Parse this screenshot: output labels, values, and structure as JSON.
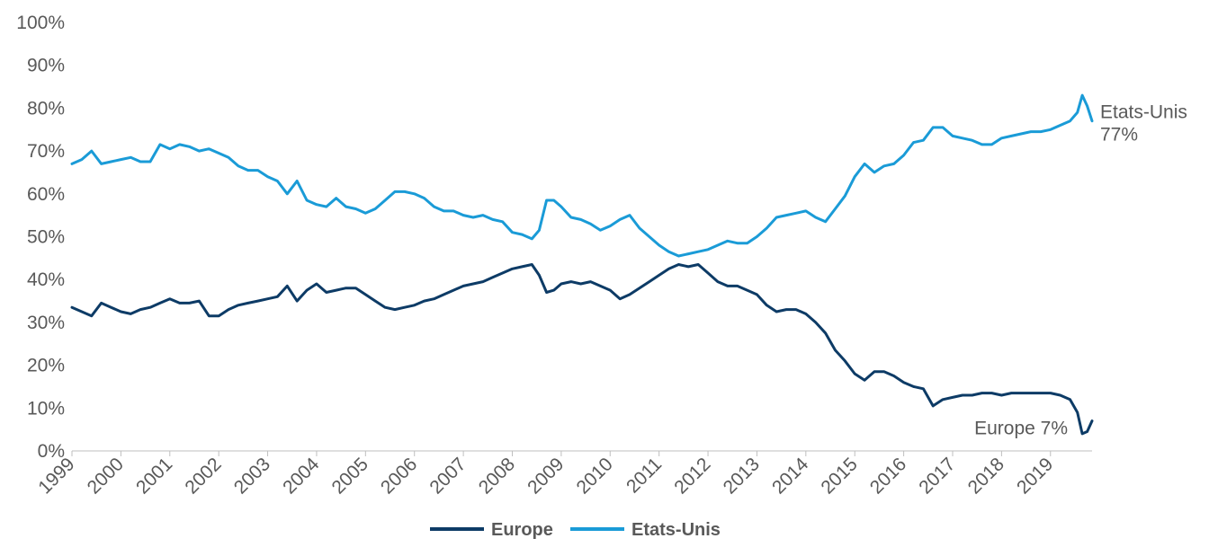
{
  "chart_data": {
    "type": "line",
    "title": "",
    "xlabel": "",
    "ylabel": "",
    "ylim": [
      0,
      100
    ],
    "y_ticks": [
      "0%",
      "10%",
      "20%",
      "30%",
      "40%",
      "50%",
      "60%",
      "70%",
      "80%",
      "90%",
      "100%"
    ],
    "x_ticks": [
      "1999",
      "2000",
      "2001",
      "2002",
      "2003",
      "2004",
      "2005",
      "2006",
      "2007",
      "2008",
      "2009",
      "2010",
      "2011",
      "2012",
      "2013",
      "2014",
      "2015",
      "2016",
      "2017",
      "2018",
      "2019"
    ],
    "xlim": [
      1999.0,
      2019.85
    ],
    "grid": false,
    "legend_position": "bottom",
    "series": [
      {
        "name": "Europe",
        "color": "#0d3b66",
        "x": [
          1999.0,
          1999.2,
          1999.4,
          1999.6,
          1999.8,
          2000.0,
          2000.2,
          2000.4,
          2000.6,
          2000.8,
          2001.0,
          2001.2,
          2001.4,
          2001.6,
          2001.8,
          2002.0,
          2002.2,
          2002.4,
          2002.6,
          2002.8,
          2003.0,
          2003.2,
          2003.4,
          2003.6,
          2003.8,
          2004.0,
          2004.2,
          2004.4,
          2004.6,
          2004.8,
          2005.0,
          2005.2,
          2005.4,
          2005.6,
          2005.8,
          2006.0,
          2006.2,
          2006.4,
          2006.6,
          2006.8,
          2007.0,
          2007.2,
          2007.4,
          2007.6,
          2007.8,
          2008.0,
          2008.2,
          2008.4,
          2008.55,
          2008.7,
          2008.85,
          2009.0,
          2009.2,
          2009.4,
          2009.6,
          2009.8,
          2010.0,
          2010.2,
          2010.4,
          2010.6,
          2010.8,
          2011.0,
          2011.2,
          2011.4,
          2011.6,
          2011.8,
          2012.0,
          2012.2,
          2012.4,
          2012.6,
          2012.8,
          2013.0,
          2013.2,
          2013.4,
          2013.6,
          2013.8,
          2014.0,
          2014.2,
          2014.4,
          2014.6,
          2014.8,
          2015.0,
          2015.2,
          2015.4,
          2015.6,
          2015.8,
          2016.0,
          2016.2,
          2016.4,
          2016.6,
          2016.8,
          2017.0,
          2017.2,
          2017.4,
          2017.6,
          2017.8,
          2018.0,
          2018.2,
          2018.4,
          2018.6,
          2018.8,
          2019.0,
          2019.2,
          2019.4,
          2019.55,
          2019.65,
          2019.75,
          2019.85
        ],
        "values": [
          33.5,
          32.5,
          31.5,
          34.5,
          33.5,
          32.5,
          32.0,
          33.0,
          33.5,
          34.5,
          35.5,
          34.5,
          34.5,
          35.0,
          31.5,
          31.5,
          33.0,
          34.0,
          34.5,
          35.0,
          35.5,
          36.0,
          38.5,
          35.0,
          37.5,
          39.0,
          37.0,
          37.5,
          38.0,
          38.0,
          36.5,
          35.0,
          33.5,
          33.0,
          33.5,
          34.0,
          35.0,
          35.5,
          36.5,
          37.5,
          38.5,
          39.0,
          39.5,
          40.5,
          41.5,
          42.5,
          43.0,
          43.5,
          41.0,
          37.0,
          37.5,
          39.0,
          39.5,
          39.0,
          39.5,
          38.5,
          37.5,
          35.5,
          36.5,
          38.0,
          39.5,
          41.0,
          42.5,
          43.5,
          43.0,
          43.5,
          41.5,
          39.5,
          38.5,
          38.5,
          37.5,
          36.5,
          34.0,
          32.5,
          33.0,
          33.0,
          32.0,
          30.0,
          27.5,
          23.5,
          21.0,
          18.0,
          16.5,
          18.5,
          18.5,
          17.5,
          16.0,
          15.0,
          14.5,
          10.5,
          12.0,
          12.5,
          13.0,
          13.0,
          13.5,
          13.5,
          13.0,
          13.5,
          13.5,
          13.5,
          13.5,
          13.5,
          13.0,
          12.0,
          9.0,
          4.0,
          4.5,
          7.0
        ]
      },
      {
        "name": "Etats-Unis",
        "color": "#1a9bd7",
        "x": [
          1999.0,
          1999.2,
          1999.4,
          1999.6,
          1999.8,
          2000.0,
          2000.2,
          2000.4,
          2000.6,
          2000.8,
          2001.0,
          2001.2,
          2001.4,
          2001.6,
          2001.8,
          2002.0,
          2002.2,
          2002.4,
          2002.6,
          2002.8,
          2003.0,
          2003.2,
          2003.4,
          2003.6,
          2003.8,
          2004.0,
          2004.2,
          2004.4,
          2004.6,
          2004.8,
          2005.0,
          2005.2,
          2005.4,
          2005.6,
          2005.8,
          2006.0,
          2006.2,
          2006.4,
          2006.6,
          2006.8,
          2007.0,
          2007.2,
          2007.4,
          2007.6,
          2007.8,
          2008.0,
          2008.2,
          2008.4,
          2008.55,
          2008.7,
          2008.85,
          2009.0,
          2009.2,
          2009.4,
          2009.6,
          2009.8,
          2010.0,
          2010.2,
          2010.4,
          2010.6,
          2010.8,
          2011.0,
          2011.2,
          2011.4,
          2011.6,
          2011.8,
          2012.0,
          2012.2,
          2012.4,
          2012.6,
          2012.8,
          2013.0,
          2013.2,
          2013.4,
          2013.6,
          2013.8,
          2014.0,
          2014.2,
          2014.4,
          2014.6,
          2014.8,
          2015.0,
          2015.2,
          2015.4,
          2015.6,
          2015.8,
          2016.0,
          2016.2,
          2016.4,
          2016.6,
          2016.8,
          2017.0,
          2017.2,
          2017.4,
          2017.6,
          2017.8,
          2018.0,
          2018.2,
          2018.4,
          2018.6,
          2018.8,
          2019.0,
          2019.2,
          2019.4,
          2019.55,
          2019.65,
          2019.75,
          2019.85
        ],
        "values": [
          67.0,
          68.0,
          70.0,
          67.0,
          67.5,
          68.0,
          68.5,
          67.5,
          67.5,
          71.5,
          70.5,
          71.5,
          71.0,
          70.0,
          70.5,
          69.5,
          68.5,
          66.5,
          65.5,
          65.5,
          64.0,
          63.0,
          60.0,
          63.0,
          58.5,
          57.5,
          57.0,
          59.0,
          57.0,
          56.5,
          55.5,
          56.5,
          58.5,
          60.5,
          60.5,
          60.0,
          59.0,
          57.0,
          56.0,
          56.0,
          55.0,
          54.5,
          55.0,
          54.0,
          53.5,
          51.0,
          50.5,
          49.5,
          51.5,
          58.5,
          58.5,
          57.0,
          54.5,
          54.0,
          53.0,
          51.5,
          52.5,
          54.0,
          55.0,
          52.0,
          50.0,
          48.0,
          46.5,
          45.5,
          46.0,
          46.5,
          47.0,
          48.0,
          49.0,
          48.5,
          48.5,
          50.0,
          52.0,
          54.5,
          55.0,
          55.5,
          56.0,
          54.5,
          53.5,
          56.5,
          59.5,
          64.0,
          67.0,
          65.0,
          66.5,
          67.0,
          69.0,
          72.0,
          72.5,
          75.5,
          75.5,
          73.5,
          73.0,
          72.5,
          71.5,
          71.5,
          73.0,
          73.5,
          74.0,
          74.5,
          74.5,
          75.0,
          76.0,
          77.0,
          79.0,
          83.0,
          80.5,
          77.0
        ]
      }
    ],
    "annotations": {
      "us_name": "Etats-Unis",
      "us_value": "77%",
      "europe": "Europe 7%"
    }
  }
}
